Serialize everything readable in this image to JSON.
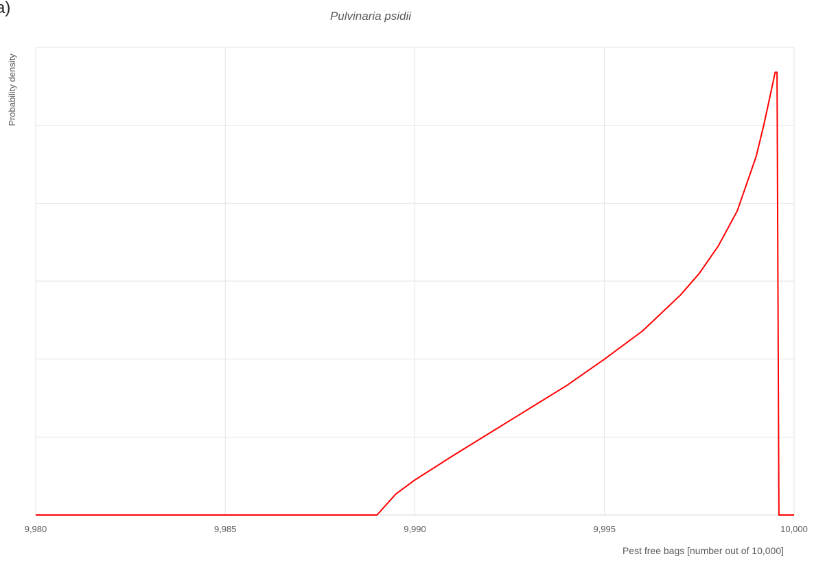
{
  "panel_label": "a)",
  "chart_data": {
    "type": "line",
    "title": "Pulvinaria psidii",
    "xlabel": "Pest free bags [number out of 10,000]",
    "ylabel": "Probability density",
    "xlim": [
      9980,
      10000
    ],
    "ylim": [
      0,
      6
    ],
    "x_ticks": [
      9980,
      9985,
      9990,
      9995,
      10000
    ],
    "x_tick_labels": [
      "9,980",
      "9,985",
      "9,990",
      "9,995",
      "10,000"
    ],
    "y_gridlines": [
      1,
      2,
      3,
      4,
      5,
      6
    ],
    "y_tick_labels_shown": false,
    "grid": true,
    "series": [
      {
        "color": "#ff0000",
        "x": [
          9980,
          9989,
          9989.5,
          9990,
          9991,
          9992,
          9993,
          9994,
          9995,
          9996,
          9997,
          9997.5,
          9998,
          9998.5,
          9999,
          9999.2,
          9999.4,
          9999.5,
          9999.55,
          9999.6,
          10000
        ],
        "y": [
          0,
          0,
          0.27,
          0.45,
          0.76,
          1.06,
          1.36,
          1.66,
          2.0,
          2.36,
          2.82,
          3.1,
          3.45,
          3.9,
          4.6,
          5.0,
          5.45,
          5.68,
          5.68,
          0,
          0
        ]
      }
    ]
  }
}
